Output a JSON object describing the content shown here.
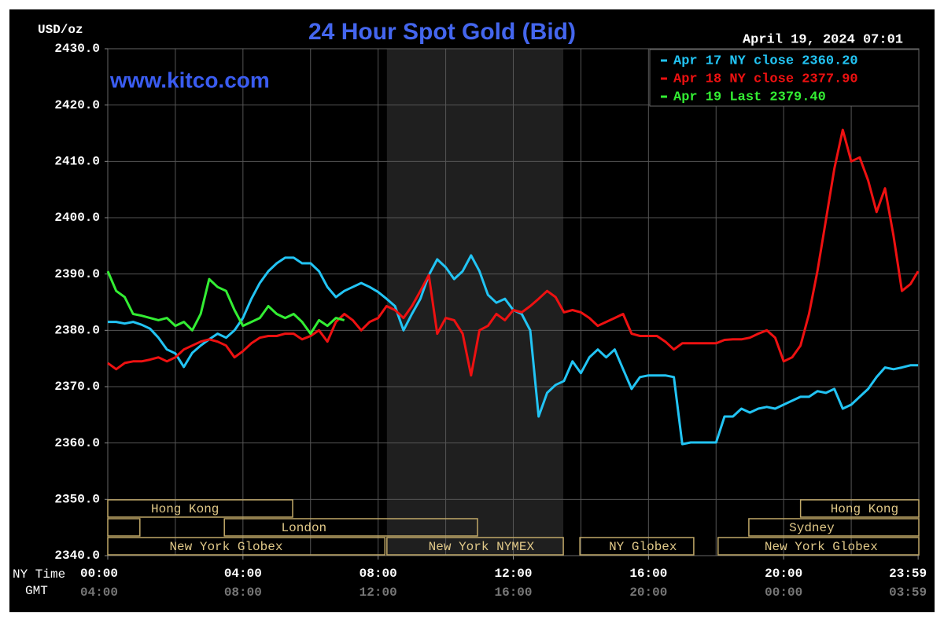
{
  "chart_data": {
    "type": "line",
    "title": "24 Hour Spot Gold (Bid)",
    "website": "www.kitco.com",
    "timestamp": "April 19, 2024 07:01",
    "y_label": "USD/oz",
    "x_label": "NY Time",
    "x2_label": "GMT",
    "xlim": [
      0,
      24
    ],
    "ylim": [
      2340,
      2430
    ],
    "grid": true,
    "x_grid_step": 2,
    "legend": "top-right",
    "xticks": [
      {
        "value": 0,
        "label": "00:00"
      },
      {
        "value": 4,
        "label": "04:00"
      },
      {
        "value": 8,
        "label": "08:00"
      },
      {
        "value": 12,
        "label": "12:00"
      },
      {
        "value": 16,
        "label": "16:00"
      },
      {
        "value": 20,
        "label": "20:00"
      },
      {
        "value": 23.98,
        "label": "23:59"
      }
    ],
    "x2ticks": [
      "04:00",
      "08:00",
      "12:00",
      "16:00",
      "20:00",
      "00:00",
      "03:59"
    ],
    "yticks": [
      {
        "value": 2340,
        "label": "2340.0"
      },
      {
        "value": 2350,
        "label": "2350.0"
      },
      {
        "value": 2360,
        "label": "2360.0"
      },
      {
        "value": 2370,
        "label": "2370.0"
      },
      {
        "value": 2380,
        "label": "2380.0"
      },
      {
        "value": 2390,
        "label": "2390.0"
      },
      {
        "value": 2400,
        "label": "2400.0"
      },
      {
        "value": 2410,
        "label": "2410.0"
      },
      {
        "value": 2420,
        "label": "2420.0"
      },
      {
        "value": 2430,
        "label": "2430.0"
      }
    ],
    "x": [
      0,
      0.25,
      0.5,
      0.75,
      1,
      1.25,
      1.5,
      1.75,
      2,
      2.25,
      2.5,
      2.75,
      3,
      3.25,
      3.5,
      3.75,
      4,
      4.25,
      4.5,
      4.75,
      5,
      5.25,
      5.5,
      5.75,
      6,
      6.25,
      6.5,
      6.75,
      7,
      7.25,
      7.5,
      7.75,
      8,
      8.25,
      8.5,
      8.75,
      9,
      9.25,
      9.5,
      9.75,
      10,
      10.25,
      10.5,
      10.75,
      11,
      11.25,
      11.5,
      11.75,
      12,
      12.25,
      12.5,
      12.75,
      13,
      13.25,
      13.5,
      13.75,
      14,
      14.25,
      14.5,
      14.75,
      15,
      15.25,
      15.5,
      15.75,
      16,
      16.25,
      16.5,
      16.75,
      17,
      17.25,
      17.5,
      17.75,
      18,
      18.25,
      18.5,
      18.75,
      19,
      19.25,
      19.5,
      19.75,
      20,
      20.25,
      20.5,
      20.75,
      21,
      21.25,
      21.5,
      21.75,
      22,
      22.25,
      22.5,
      22.75,
      23,
      23.25,
      23.5,
      23.75,
      23.98
    ],
    "series": [
      {
        "name": "Apr 17 NY close 2360.20",
        "color": "#22c4f4",
        "values": [
          2381.5,
          2381.5,
          2381.2,
          2381.5,
          2381,
          2380.3,
          2378.7,
          2376.6,
          2375.9,
          2373.5,
          2376,
          2377.3,
          2378.4,
          2379.4,
          2378.7,
          2380,
          2382.2,
          2385.6,
          2388.4,
          2390.5,
          2391.9,
          2392.9,
          2392.9,
          2391.9,
          2391.9,
          2390.5,
          2387.7,
          2385.9,
          2387,
          2387.7,
          2388.4,
          2387.7,
          2386.8,
          2385.6,
          2384.3,
          2380,
          2382.9,
          2385.6,
          2389.8,
          2392.6,
          2391.2,
          2389.1,
          2390.5,
          2393.3,
          2390.5,
          2386.3,
          2384.9,
          2385.6,
          2383.6,
          2382.9,
          2380,
          2364.7,
          2368.9,
          2370.3,
          2371,
          2374.5,
          2372.4,
          2375.2,
          2376.6,
          2375.2,
          2376.6,
          2373.1,
          2369.6,
          2371.7,
          2372,
          2372,
          2372,
          2371.7,
          2359.8,
          2360.1,
          2360.1,
          2360.1,
          2360.1,
          2364.7,
          2364.7,
          2366.1,
          2365.4,
          2366.1,
          2366.4,
          2366.1,
          2366.8,
          2367.5,
          2368.2,
          2368.2,
          2369.2,
          2368.9,
          2369.6,
          2366.1,
          2366.8,
          2368.2,
          2369.6,
          2371.7,
          2373.4,
          2373.1,
          2373.4,
          2373.8,
          2373.8
        ]
      },
      {
        "name": "Apr 18 NY close 2377.90",
        "color": "#ee1111",
        "values": [
          2374.2,
          2373.1,
          2374.2,
          2374.5,
          2374.5,
          2374.8,
          2375.2,
          2374.5,
          2375.2,
          2376.6,
          2377.3,
          2378,
          2378.4,
          2378,
          2377.3,
          2375.2,
          2376.3,
          2377.7,
          2378.7,
          2379,
          2379,
          2379.4,
          2379.4,
          2378.4,
          2379,
          2380,
          2378,
          2381.5,
          2382.9,
          2381.8,
          2380,
          2381.5,
          2382.2,
          2384.3,
          2383.6,
          2382.2,
          2384.3,
          2387,
          2389.8,
          2379.4,
          2382.2,
          2381.8,
          2379.4,
          2372,
          2380,
          2380.8,
          2382.9,
          2381.8,
          2383.6,
          2383.2,
          2384.3,
          2385.6,
          2387,
          2385.9,
          2383.2,
          2383.6,
          2383.2,
          2382.2,
          2380.8,
          2381.5,
          2382.2,
          2382.9,
          2379.4,
          2379,
          2379,
          2379,
          2378,
          2376.6,
          2377.7,
          2377.7,
          2377.7,
          2377.7,
          2377.7,
          2378.3,
          2378.4,
          2378.4,
          2378.7,
          2379.4,
          2380,
          2378.7,
          2374.5,
          2375.2,
          2377.3,
          2382.9,
          2390.5,
          2399.6,
          2408.7,
          2415.6,
          2410,
          2410.7,
          2406.6,
          2401,
          2405.2,
          2396.8,
          2387,
          2388.2,
          2390.5
        ]
      },
      {
        "name": "Apr 19 Last 2379.40",
        "color": "#33ee33",
        "values": [
          2390.5,
          2387,
          2385.9,
          2382.9,
          2382.6,
          2382.2,
          2381.8,
          2382.2,
          2380.8,
          2381.5,
          2380,
          2382.9,
          2389.1,
          2387.7,
          2387,
          2383.6,
          2380.8,
          2381.5,
          2382.2,
          2384.3,
          2382.9,
          2382.2,
          2382.9,
          2381.5,
          2379.4,
          2381.8,
          2380.8,
          2382.2,
          2381.8,
          null,
          null,
          null,
          null,
          null,
          null,
          null,
          null,
          null,
          null,
          null,
          null,
          null,
          null,
          null,
          null,
          null,
          null,
          null,
          null,
          null,
          null,
          null,
          null,
          null,
          null,
          null,
          null,
          null,
          null,
          null,
          null,
          null,
          null,
          null,
          null,
          null,
          null,
          null,
          null,
          null,
          null,
          null,
          null,
          null,
          null,
          null,
          null,
          null,
          null,
          null,
          null,
          null,
          null,
          null,
          null,
          null,
          null,
          null,
          null,
          null,
          null,
          null,
          null,
          null,
          null,
          null,
          null
        ]
      }
    ],
    "sessions": [
      [
        {
          "name": "Hong Kong",
          "start": 0,
          "end": 5.47
        },
        {
          "name": "Hong Kong",
          "start": 20.5,
          "end": 24
        }
      ],
      [
        {
          "name": null,
          "start": 0,
          "end": 0.95
        },
        {
          "name": "London",
          "start": 3.45,
          "end": 10.94
        },
        {
          "name": "Sydney",
          "start": 18.97,
          "end": 24
        }
      ],
      [
        {
          "name": "New York Globex",
          "start": 0,
          "end": 8.2
        },
        {
          "name": "New York NYMEX",
          "start": 8.26,
          "end": 13.48,
          "highlight": true
        },
        {
          "name": "NY Globex",
          "start": 13.97,
          "end": 17.34
        },
        {
          "name": "New York Globex",
          "start": 18.06,
          "end": 24
        }
      ]
    ]
  }
}
